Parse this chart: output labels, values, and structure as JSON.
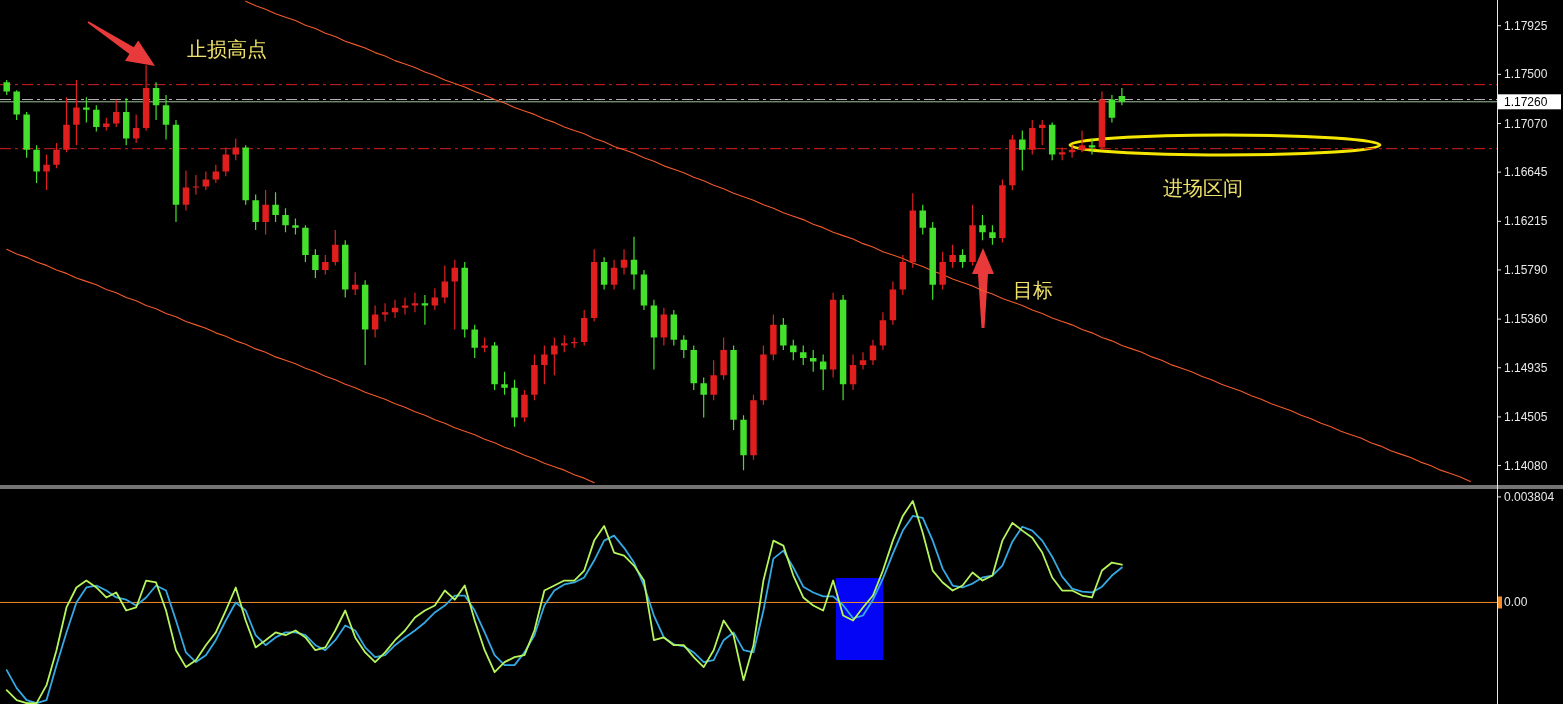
{
  "chart_data": [
    {
      "type": "candlestick",
      "categories": [
        null,
        null,
        null,
        null,
        null,
        null,
        null,
        null,
        null,
        null,
        null,
        null,
        null,
        null,
        null,
        null,
        null,
        null,
        null,
        null,
        null,
        null,
        null,
        null,
        null,
        null,
        null,
        null,
        null,
        null,
        null,
        null,
        null,
        null,
        null,
        null,
        null,
        null,
        null,
        null,
        null,
        null,
        null,
        null,
        null,
        null,
        null,
        null,
        null,
        null,
        null,
        null,
        null,
        null,
        null,
        null,
        null,
        null,
        null,
        null,
        null,
        null,
        null,
        null,
        null,
        null,
        null,
        null,
        null,
        null,
        null,
        null,
        null,
        null,
        null,
        null,
        null,
        null,
        null,
        null,
        null,
        null,
        null,
        null,
        null,
        null,
        null,
        null,
        null,
        null,
        null,
        null,
        null,
        null,
        null,
        null,
        null,
        null,
        null,
        null,
        null,
        null,
        null,
        null,
        null,
        null,
        null,
        null,
        null,
        null,
        null,
        null,
        null,
        null,
        null,
        null,
        null,
        null,
        null,
        null,
        null,
        null,
        null,
        null,
        null,
        null,
        null,
        null,
        null,
        null,
        null,
        null,
        null,
        null,
        null,
        null,
        null,
        null,
        null,
        null,
        null,
        null,
        null,
        null,
        null,
        null,
        null,
        null,
        null,
        null
      ],
      "series": [
        {
          "type": "candlestick",
          "ohlc": [
            [
              1.1743,
              1.1745,
              1.1732,
              1.1735
            ],
            [
              1.1735,
              1.1736,
              1.171,
              1.1715
            ],
            [
              1.1715,
              1.1717,
              1.1677,
              1.1684
            ],
            [
              1.1684,
              1.1688,
              1.1655,
              1.1665
            ],
            [
              1.1665,
              1.168,
              1.1649,
              1.1671
            ],
            [
              1.1671,
              1.169,
              1.1668,
              1.1684
            ],
            [
              1.1684,
              1.173,
              1.1682,
              1.1706
            ],
            [
              1.1706,
              1.1745,
              1.1688,
              1.1721
            ],
            [
              1.1721,
              1.173,
              1.1708,
              1.1719
            ],
            [
              1.1719,
              1.1723,
              1.17,
              1.1704
            ],
            [
              1.1704,
              1.1712,
              1.1701,
              1.1707
            ],
            [
              1.1707,
              1.1728,
              1.1704,
              1.1717
            ],
            [
              1.1717,
              1.1729,
              1.1688,
              1.1694
            ],
            [
              1.1694,
              1.1715,
              1.169,
              1.1703
            ],
            [
              1.1703,
              1.1758,
              1.1701,
              1.1738
            ],
            [
              1.1738,
              1.1743,
              1.171,
              1.1723
            ],
            [
              1.1723,
              1.1732,
              1.1693,
              1.1706
            ],
            [
              1.1706,
              1.171,
              1.1621,
              1.1636
            ],
            [
              1.1636,
              1.1666,
              1.1631,
              1.1651
            ],
            [
              1.1651,
              1.1662,
              1.1645,
              1.1652
            ],
            [
              1.1652,
              1.1665,
              1.1649,
              1.1658
            ],
            [
              1.1658,
              1.1671,
              1.1655,
              1.1665
            ],
            [
              1.1665,
              1.1686,
              1.1661,
              1.168
            ],
            [
              1.168,
              1.1694,
              1.1675,
              1.1686
            ],
            [
              1.1686,
              1.1688,
              1.1636,
              1.164
            ],
            [
              1.164,
              1.1645,
              1.1614,
              1.1621
            ],
            [
              1.1621,
              1.1649,
              1.161,
              1.1636
            ],
            [
              1.1636,
              1.1647,
              1.1621,
              1.1627
            ],
            [
              1.1627,
              1.1633,
              1.1612,
              1.1618
            ],
            [
              1.1618,
              1.1624,
              1.161,
              1.1616
            ],
            [
              1.1616,
              1.1618,
              1.1586,
              1.1592
            ],
            [
              1.1592,
              1.1597,
              1.1572,
              1.1579
            ],
            [
              1.1579,
              1.1592,
              1.1575,
              1.1586
            ],
            [
              1.1586,
              1.1614,
              1.1583,
              1.1601
            ],
            [
              1.1601,
              1.1605,
              1.1555,
              1.1562
            ],
            [
              1.1562,
              1.1577,
              1.1557,
              1.1566
            ],
            [
              1.1566,
              1.157,
              1.1496,
              1.1527
            ],
            [
              1.1527,
              1.1548,
              1.152,
              1.154
            ],
            [
              1.154,
              1.155,
              1.1534,
              1.1542
            ],
            [
              1.1542,
              1.1553,
              1.1537,
              1.1546
            ],
            [
              1.1546,
              1.1555,
              1.154,
              1.1548
            ],
            [
              1.1548,
              1.1559,
              1.1542,
              1.155
            ],
            [
              1.155,
              1.1557,
              1.1531,
              1.1548
            ],
            [
              1.1548,
              1.1563,
              1.1544,
              1.1555
            ],
            [
              1.1555,
              1.1583,
              1.155,
              1.1569
            ],
            [
              1.1569,
              1.1588,
              1.1527,
              1.1581
            ],
            [
              1.1581,
              1.1586,
              1.152,
              1.1527
            ],
            [
              1.1527,
              1.1531,
              1.1502,
              1.1511
            ],
            [
              1.1511,
              1.152,
              1.1507,
              1.1513
            ],
            [
              1.1513,
              1.1516,
              1.1474,
              1.1479
            ],
            [
              1.1479,
              1.149,
              1.147,
              1.1476
            ],
            [
              1.1476,
              1.1483,
              1.1442,
              1.145
            ],
            [
              1.145,
              1.1474,
              1.1446,
              1.147
            ],
            [
              1.147,
              1.1505,
              1.1465,
              1.1496
            ],
            [
              1.1496,
              1.1513,
              1.1479,
              1.1505
            ],
            [
              1.1505,
              1.152,
              1.1487,
              1.1513
            ],
            [
              1.1513,
              1.1522,
              1.1507,
              1.1515
            ],
            [
              1.1515,
              1.152,
              1.1511,
              1.1516
            ],
            [
              1.1516,
              1.1544,
              1.1513,
              1.1537
            ],
            [
              1.1537,
              1.1597,
              1.1534,
              1.1586
            ],
            [
              1.1586,
              1.159,
              1.1562,
              1.1566
            ],
            [
              1.1566,
              1.1588,
              1.1562,
              1.1581
            ],
            [
              1.1581,
              1.1597,
              1.1575,
              1.1588
            ],
            [
              1.1588,
              1.1608,
              1.1562,
              1.1575
            ],
            [
              1.1575,
              1.1579,
              1.1544,
              1.1548
            ],
            [
              1.1548,
              1.1553,
              1.1492,
              1.152
            ],
            [
              1.152,
              1.1546,
              1.1513,
              1.154
            ],
            [
              1.154,
              1.1544,
              1.1513,
              1.1518
            ],
            [
              1.1518,
              1.1522,
              1.1502,
              1.1509
            ],
            [
              1.1509,
              1.1513,
              1.1474,
              1.148
            ],
            [
              1.148,
              1.1485,
              1.145,
              1.147
            ],
            [
              1.147,
              1.15,
              1.1465,
              1.1487
            ],
            [
              1.1487,
              1.152,
              1.1483,
              1.1509
            ],
            [
              1.1509,
              1.1513,
              1.1439,
              1.1448
            ],
            [
              1.1448,
              1.1452,
              1.1404,
              1.1417
            ],
            [
              1.1417,
              1.147,
              1.1413,
              1.1465
            ],
            [
              1.1465,
              1.1513,
              1.1461,
              1.1505
            ],
            [
              1.1505,
              1.154,
              1.15,
              1.1531
            ],
            [
              1.1531,
              1.1537,
              1.1509,
              1.1513
            ],
            [
              1.1513,
              1.1518,
              1.15,
              1.1507
            ],
            [
              1.1507,
              1.1513,
              1.1496,
              1.1502
            ],
            [
              1.1502,
              1.1509,
              1.149,
              1.1499
            ],
            [
              1.1499,
              1.1505,
              1.1474,
              1.1492
            ],
            [
              1.1492,
              1.1559,
              1.1485,
              1.1553
            ],
            [
              1.1553,
              1.1557,
              1.1465,
              1.1479
            ],
            [
              1.1479,
              1.1505,
              1.1474,
              1.1496
            ],
            [
              1.1496,
              1.1507,
              1.1492,
              1.15
            ],
            [
              1.15,
              1.1518,
              1.1496,
              1.1513
            ],
            [
              1.1513,
              1.1542,
              1.1509,
              1.1535
            ],
            [
              1.1535,
              1.1569,
              1.1531,
              1.1562
            ],
            [
              1.1562,
              1.1592,
              1.1557,
              1.1586
            ],
            [
              1.1586,
              1.1646,
              1.1581,
              1.1631
            ],
            [
              1.1631,
              1.1636,
              1.161,
              1.1616
            ],
            [
              1.1616,
              1.1621,
              1.1553,
              1.1566
            ],
            [
              1.1566,
              1.1595,
              1.1562,
              1.1586
            ],
            [
              1.1586,
              1.1601,
              1.1581,
              1.1592
            ],
            [
              1.1592,
              1.1597,
              1.1581,
              1.1586
            ],
            [
              1.1586,
              1.1636,
              1.1583,
              1.1618
            ],
            [
              1.1618,
              1.1627,
              1.1605,
              1.1612
            ],
            [
              1.1612,
              1.1618,
              1.1601,
              1.1607
            ],
            [
              1.1607,
              1.1658,
              1.1603,
              1.1653
            ],
            [
              1.1653,
              1.1697,
              1.1649,
              1.1693
            ],
            [
              1.1693,
              1.1701,
              1.1666,
              1.1684
            ],
            [
              1.1684,
              1.171,
              1.168,
              1.1703
            ],
            [
              1.1703,
              1.171,
              1.1688,
              1.1706
            ],
            [
              1.1706,
              1.1708,
              1.1675,
              1.168
            ],
            [
              1.168,
              1.1686,
              1.1675,
              1.1682
            ],
            [
              1.1682,
              1.1688,
              1.1677,
              1.1684
            ],
            [
              1.1684,
              1.1701,
              1.1682,
              1.1688
            ],
            [
              1.1688,
              1.1694,
              1.168,
              1.1686
            ],
            [
              1.1686,
              1.1735,
              1.1684,
              1.1728
            ],
            [
              1.1728,
              1.1732,
              1.1708,
              1.1712
            ],
            [
              1.1731,
              1.1738,
              1.1723,
              1.1726
            ],
            null,
            null,
            null,
            null,
            null,
            null,
            null,
            null,
            null,
            null,
            null,
            null,
            null,
            null,
            null,
            null,
            null,
            null,
            null,
            null,
            null,
            null,
            null,
            null,
            null,
            null,
            null,
            null,
            null,
            null,
            null,
            null,
            null,
            null,
            null,
            null,
            null
          ],
          "colors": [
            "#44e02c",
            "#44e02c",
            "#44e02c",
            "#44e02c",
            "#e01e1e",
            "#e01e1e",
            "#e01e1e",
            "#e01e1e",
            "#44e02c",
            "#44e02c",
            "#e01e1e",
            "#e01e1e",
            "#44e02c",
            "#e01e1e",
            "#e01e1e",
            "#44e02c",
            "#44e02c",
            "#44e02c",
            "#e01e1e",
            "#e01e1e",
            "#e01e1e",
            "#e01e1e",
            "#e01e1e",
            "#e01e1e",
            "#44e02c",
            "#44e02c",
            "#e01e1e",
            "#44e02c",
            "#44e02c",
            "#44e02c",
            "#44e02c",
            "#44e02c",
            "#e01e1e",
            "#e01e1e",
            "#44e02c",
            "#e01e1e",
            "#44e02c",
            "#e01e1e",
            "#e01e1e",
            "#e01e1e",
            "#e01e1e",
            "#e01e1e",
            "#44e02c",
            "#e01e1e",
            "#e01e1e",
            "#e01e1e",
            "#44e02c",
            "#44e02c",
            "#e01e1e",
            "#44e02c",
            "#44e02c",
            "#44e02c",
            "#e01e1e",
            "#e01e1e",
            "#e01e1e",
            "#e01e1e",
            "#e01e1e",
            "#e01e1e",
            "#e01e1e",
            "#e01e1e",
            "#44e02c",
            "#e01e1e",
            "#e01e1e",
            "#44e02c",
            "#44e02c",
            "#44e02c",
            "#e01e1e",
            "#44e02c",
            "#44e02c",
            "#44e02c",
            "#44e02c",
            "#e01e1e",
            "#e01e1e",
            "#44e02c",
            "#44e02c",
            "#e01e1e",
            "#e01e1e",
            "#e01e1e",
            "#44e02c",
            "#44e02c",
            "#44e02c",
            "#44e02c",
            "#44e02c",
            "#e01e1e",
            "#44e02c",
            "#e01e1e",
            "#e01e1e",
            "#e01e1e",
            "#e01e1e",
            "#e01e1e",
            "#e01e1e",
            "#e01e1e",
            "#44e02c",
            "#44e02c",
            "#e01e1e",
            "#e01e1e",
            "#44e02c",
            "#e01e1e",
            "#44e02c",
            "#44e02c",
            "#e01e1e",
            "#e01e1e",
            "#44e02c",
            "#e01e1e",
            "#e01e1e",
            "#44e02c",
            "#e01e1e",
            "#e01e1e",
            "#e01e1e",
            "#44e02c",
            "#e01e1e",
            "#44e02c",
            "#44e02c",
            null,
            null,
            null,
            null,
            null,
            null,
            null,
            null,
            null,
            null,
            null,
            null,
            null,
            null,
            null,
            null,
            null,
            null,
            null,
            null,
            null,
            null,
            null,
            null,
            null,
            null,
            null,
            null,
            null,
            null,
            null,
            null,
            null,
            null,
            null,
            null,
            null
          ]
        },
        {
          "type": "line",
          "color": "#f05a2a",
          "values": [
            null,
            null,
            null,
            null,
            null,
            null,
            null,
            null,
            null,
            null,
            null,
            null,
            null,
            null,
            null,
            null,
            null,
            null,
            null,
            null,
            null,
            null,
            null,
            null,
            1.1814,
            1.181,
            1.1807,
            1.1803,
            1.18,
            1.1797,
            1.1793,
            1.179,
            1.1786,
            1.1783,
            1.1779,
            1.1776,
            1.1773,
            1.1769,
            1.1766,
            1.1762,
            1.1759,
            1.1756,
            1.1752,
            1.1749,
            1.1745,
            1.1742,
            1.1739,
            1.1735,
            1.1732,
            1.1728,
            1.1725,
            1.1721,
            1.1718,
            1.1715,
            1.1711,
            1.1708,
            1.1704,
            1.1701,
            1.1698,
            1.1694,
            1.1691,
            1.1687,
            1.1684,
            1.1681,
            1.1677,
            1.1674,
            1.167,
            1.1667,
            1.1664,
            1.166,
            1.1657,
            1.1653,
            1.165,
            1.1646,
            1.1643,
            1.164,
            1.1636,
            1.1633,
            1.1629,
            1.1626,
            1.1623,
            1.1619,
            1.1616,
            1.1612,
            1.1609,
            1.1606,
            1.1602,
            1.1599,
            1.1595,
            1.1592,
            1.1589,
            1.1585,
            1.1582,
            1.1578,
            1.1575,
            1.1571,
            1.1568,
            1.1565,
            1.1561,
            1.1558,
            1.1554,
            1.1551,
            1.1548,
            1.1544,
            1.1541,
            1.1537,
            1.1534,
            1.1531,
            1.1527,
            1.1524,
            1.152,
            1.1517,
            1.1513,
            1.151,
            1.1507,
            1.1503,
            1.15,
            1.1496,
            1.1493,
            1.149,
            1.1486,
            1.1483,
            1.1479,
            1.1476,
            1.1473,
            1.1469,
            1.1466,
            1.1462,
            1.1459,
            1.1456,
            1.1452,
            1.1449,
            1.1445,
            1.1442,
            1.1438,
            1.1435,
            1.1432,
            1.1428,
            1.1425,
            1.1421,
            1.1418,
            1.1415,
            1.1411,
            1.1408,
            1.1404,
            1.1401,
            1.1398,
            1.1394,
            null,
            null
          ]
        },
        {
          "type": "line",
          "color": "#f05a2a",
          "values": [
            1.1597,
            1.1593,
            1.159,
            1.1586,
            1.1583,
            1.1579,
            1.1576,
            1.1572,
            1.1569,
            1.1566,
            1.1562,
            1.1559,
            1.1555,
            1.1552,
            1.1548,
            1.1545,
            1.1541,
            1.1538,
            1.1534,
            1.1531,
            1.1528,
            1.1524,
            1.1521,
            1.1517,
            1.1514,
            1.151,
            1.1507,
            1.1503,
            1.15,
            1.1497,
            1.1493,
            1.149,
            1.1486,
            1.1483,
            1.1479,
            1.1476,
            1.1472,
            1.1469,
            1.1466,
            1.1462,
            1.1459,
            1.1455,
            1.1452,
            1.1448,
            1.1445,
            1.1441,
            1.1438,
            1.1435,
            1.1431,
            1.1428,
            1.1424,
            1.1421,
            1.1417,
            1.1414,
            1.141,
            1.1407,
            1.1404,
            1.14,
            1.1397,
            1.1393,
            null,
            null,
            null,
            null,
            null,
            null,
            null,
            null,
            null,
            null,
            null,
            null,
            null,
            null,
            null,
            null,
            null,
            null,
            null,
            null,
            null,
            null,
            null,
            null,
            null,
            null,
            null,
            null,
            null,
            null,
            null,
            null,
            null,
            null,
            null,
            null,
            null,
            null,
            null,
            null,
            null,
            null,
            null,
            null,
            null,
            null,
            null,
            null,
            null,
            null,
            null,
            null,
            null,
            null,
            null,
            null,
            null,
            null,
            null,
            null,
            null,
            null,
            null,
            null,
            null,
            null,
            null,
            null,
            null,
            null,
            null,
            null,
            null,
            null,
            null,
            null,
            null,
            null,
            null,
            null,
            null,
            null,
            null,
            null,
            null,
            null,
            null,
            null,
            null,
            null
          ]
        }
      ],
      "ylim": [
        1.1391,
        1.1815
      ],
      "yticks": [
        1.17925,
        {
          "value": 1.175,
          "label": "1.17500"
        },
        {
          "value": 1.1707,
          "label": "1.17070"
        },
        1.16645,
        1.16215,
        {
          "value": 1.1579,
          "label": "1.15790"
        },
        {
          "value": 1.1536,
          "label": "1.15360"
        },
        1.14935,
        1.14505,
        {
          "value": 1.1408,
          "label": "1.14080"
        }
      ],
      "ref_lines": [
        {
          "axis": "y",
          "value": 1.1741,
          "color": "#d42020",
          "line_style": "dashed"
        },
        {
          "axis": "y",
          "value": 1.1685,
          "color": "#d42020",
          "line_style": "dashed"
        },
        {
          "axis": "y",
          "value": 1.1728,
          "color": "#b4b4b4",
          "line_style": "dashed"
        },
        {
          "axis": "y",
          "value": 1.1726,
          "label": "1.17260",
          "color": "#9fc49a"
        }
      ],
      "annotations": [
        "止损高点",
        "进场区间",
        "目标"
      ],
      "tick_labels": "y"
    },
    {
      "type": "line",
      "categories": [
        null,
        null,
        null,
        null,
        null,
        null,
        null,
        null,
        null,
        null,
        null,
        null,
        null,
        null,
        null,
        null,
        null,
        null,
        null,
        null,
        null,
        null,
        null,
        null,
        null,
        null,
        null,
        null,
        null,
        null,
        null,
        null,
        null,
        null,
        null,
        null,
        null,
        null,
        null,
        null,
        null,
        null,
        null,
        null,
        null,
        null,
        null,
        null,
        null,
        null,
        null,
        null,
        null,
        null,
        null,
        null,
        null,
        null,
        null,
        null,
        null,
        null,
        null,
        null,
        null,
        null,
        null,
        null,
        null,
        null,
        null,
        null,
        null,
        null,
        null,
        null,
        null,
        null,
        null,
        null,
        null,
        null,
        null,
        null,
        null,
        null,
        null,
        null,
        null,
        null,
        null,
        null,
        null,
        null,
        null,
        null,
        null,
        null,
        null,
        null,
        null,
        null,
        null,
        null,
        null,
        null,
        null,
        null,
        null,
        null,
        null,
        null,
        null,
        null,
        null,
        null,
        null,
        null,
        null,
        null,
        null,
        null,
        null,
        null,
        null,
        null,
        null,
        null,
        null,
        null,
        null,
        null,
        null,
        null,
        null,
        null,
        null,
        null,
        null,
        null,
        null,
        null,
        null,
        null,
        null,
        null,
        null,
        null,
        null,
        null
      ],
      "series": [
        {
          "color": "#35a9e3",
          "values": [
            -0.00244,
            -0.00309,
            -0.00352,
            -0.00363,
            -0.00352,
            -0.00226,
            -0.00108,
            0,
            0.00054,
            0.00061,
            0.00043,
            0.00018,
            0.0001,
            -0.00011,
            0.00018,
            0.00061,
            0.00043,
            -0.00065,
            -0.0018,
            -0.00215,
            -0.0019,
            -0.00136,
            -0.00065,
            0,
            -0.00029,
            -0.00118,
            -0.00154,
            -0.00126,
            -0.00108,
            -0.00108,
            -0.00118,
            -0.00154,
            -0.00172,
            -0.00136,
            -0.00083,
            -0.00101,
            -0.00162,
            -0.00197,
            -0.0019,
            -0.00154,
            -0.00126,
            -0.00101,
            -0.00072,
            -0.00036,
            -0.00011,
            0.00025,
            0.00025,
            -0.00029,
            -0.00108,
            -0.0019,
            -0.00226,
            -0.00226,
            -0.0018,
            -0.00118,
            -0.00011,
            0.00043,
            0.00065,
            0.00072,
            0.0009,
            0.00151,
            0.00223,
            0.00241,
            0.00197,
            0.00144,
            0.00061,
            -0.00047,
            -0.00126,
            -0.00151,
            -0.00158,
            -0.0018,
            -0.00215,
            -0.00208,
            -0.00136,
            -0.00108,
            -0.00172,
            -0.0018,
            -0.00029,
            0.00158,
            0.00187,
            0.00126,
            0.00057,
            0.00036,
            0.00022,
            0.00022,
            -0.0001,
            -0.00057,
            -0.00047,
            0.0001,
            0.00086,
            0.00176,
            0.00259,
            0.00312,
            0.00305,
            0.00223,
            0.00122,
            0.00061,
            0.00054,
            0.00068,
            0.0009,
            0.00097,
            0.00133,
            0.00219,
            0.00273,
            0.00259,
            0.00223,
            0.00165,
            0.00093,
            0.0005,
            0.00039,
            0.00036,
            0.00057,
            0.00097,
            0.00126,
            null,
            null,
            null,
            null,
            null,
            null,
            null,
            null,
            null,
            null,
            null,
            null,
            null,
            null,
            null,
            null,
            null,
            null,
            null,
            null,
            null,
            null,
            null,
            null,
            null,
            null,
            null,
            null,
            null,
            null,
            null,
            null,
            null,
            null,
            null,
            null,
            null
          ]
        },
        {
          "color": "#b6f55c",
          "values": [
            -0.00316,
            -0.00352,
            -0.00363,
            -0.00363,
            -0.00298,
            -0.00172,
            -0.00018,
            0.00054,
            0.00079,
            0.00054,
            0.00018,
            0.00036,
            -0.00029,
            -0.00018,
            0.00079,
            0.00072,
            -0.00029,
            -0.00172,
            -0.00233,
            -0.00208,
            -0.00154,
            -0.00108,
            -0.00029,
            0.00054,
            -0.00065,
            -0.00162,
            -0.00136,
            -0.00108,
            -0.00118,
            -0.00101,
            -0.00126,
            -0.00172,
            -0.00162,
            -0.00101,
            -0.00029,
            -0.00126,
            -0.0018,
            -0.00215,
            -0.0018,
            -0.00136,
            -0.00101,
            -0.00054,
            -0.00029,
            -0.00011,
            0.00043,
            0.0001,
            0.00061,
            -0.00065,
            -0.00172,
            -0.00251,
            -0.00215,
            -0.00197,
            -0.0019,
            -0.00101,
            0.00043,
            0.00061,
            0.00079,
            0.00079,
            0.00115,
            0.00223,
            0.00276,
            0.0018,
            0.00169,
            0.00133,
            0.00079,
            -0.00136,
            -0.00126,
            -0.00154,
            -0.00154,
            -0.00197,
            -0.00233,
            -0.00172,
            -0.00065,
            -0.00118,
            -0.0028,
            -0.00154,
            0.00079,
            0.00223,
            0.00205,
            0.00097,
            0.00018,
            -0.00011,
            -0.00029,
            0.00079,
            -0.00047,
            -0.00065,
            -0.00018,
            0.00025,
            0.00115,
            0.00223,
            0.00312,
            0.00366,
            0.00251,
            0.00115,
            0.00072,
            0.00043,
            0.00061,
            0.00108,
            0.00079,
            0.00097,
            0.00223,
            0.00287,
            0.00259,
            0.00233,
            0.0018,
            0.0009,
            0.00043,
            0.00043,
            0.00025,
            0.00018,
            0.00115,
            0.00144,
            0.00136,
            null,
            null,
            null,
            null,
            null,
            null,
            null,
            null,
            null,
            null,
            null,
            null,
            null,
            null,
            null,
            null,
            null,
            null,
            null,
            null,
            null,
            null,
            null,
            null,
            null,
            null,
            null,
            null,
            null,
            null,
            null,
            null,
            null,
            null,
            null,
            null,
            null
          ]
        }
      ],
      "ylim": [
        -0.00366,
        0.00409
      ],
      "yticks": [
        {
          "value": 0.003804,
          "label": "0.003804"
        },
        {
          "value": 0,
          "label": "0.00"
        }
      ],
      "ref_lines": [
        {
          "axis": "y",
          "value": 0,
          "color": "#f28c28"
        }
      ],
      "tick_labels": "y"
    }
  ]
}
